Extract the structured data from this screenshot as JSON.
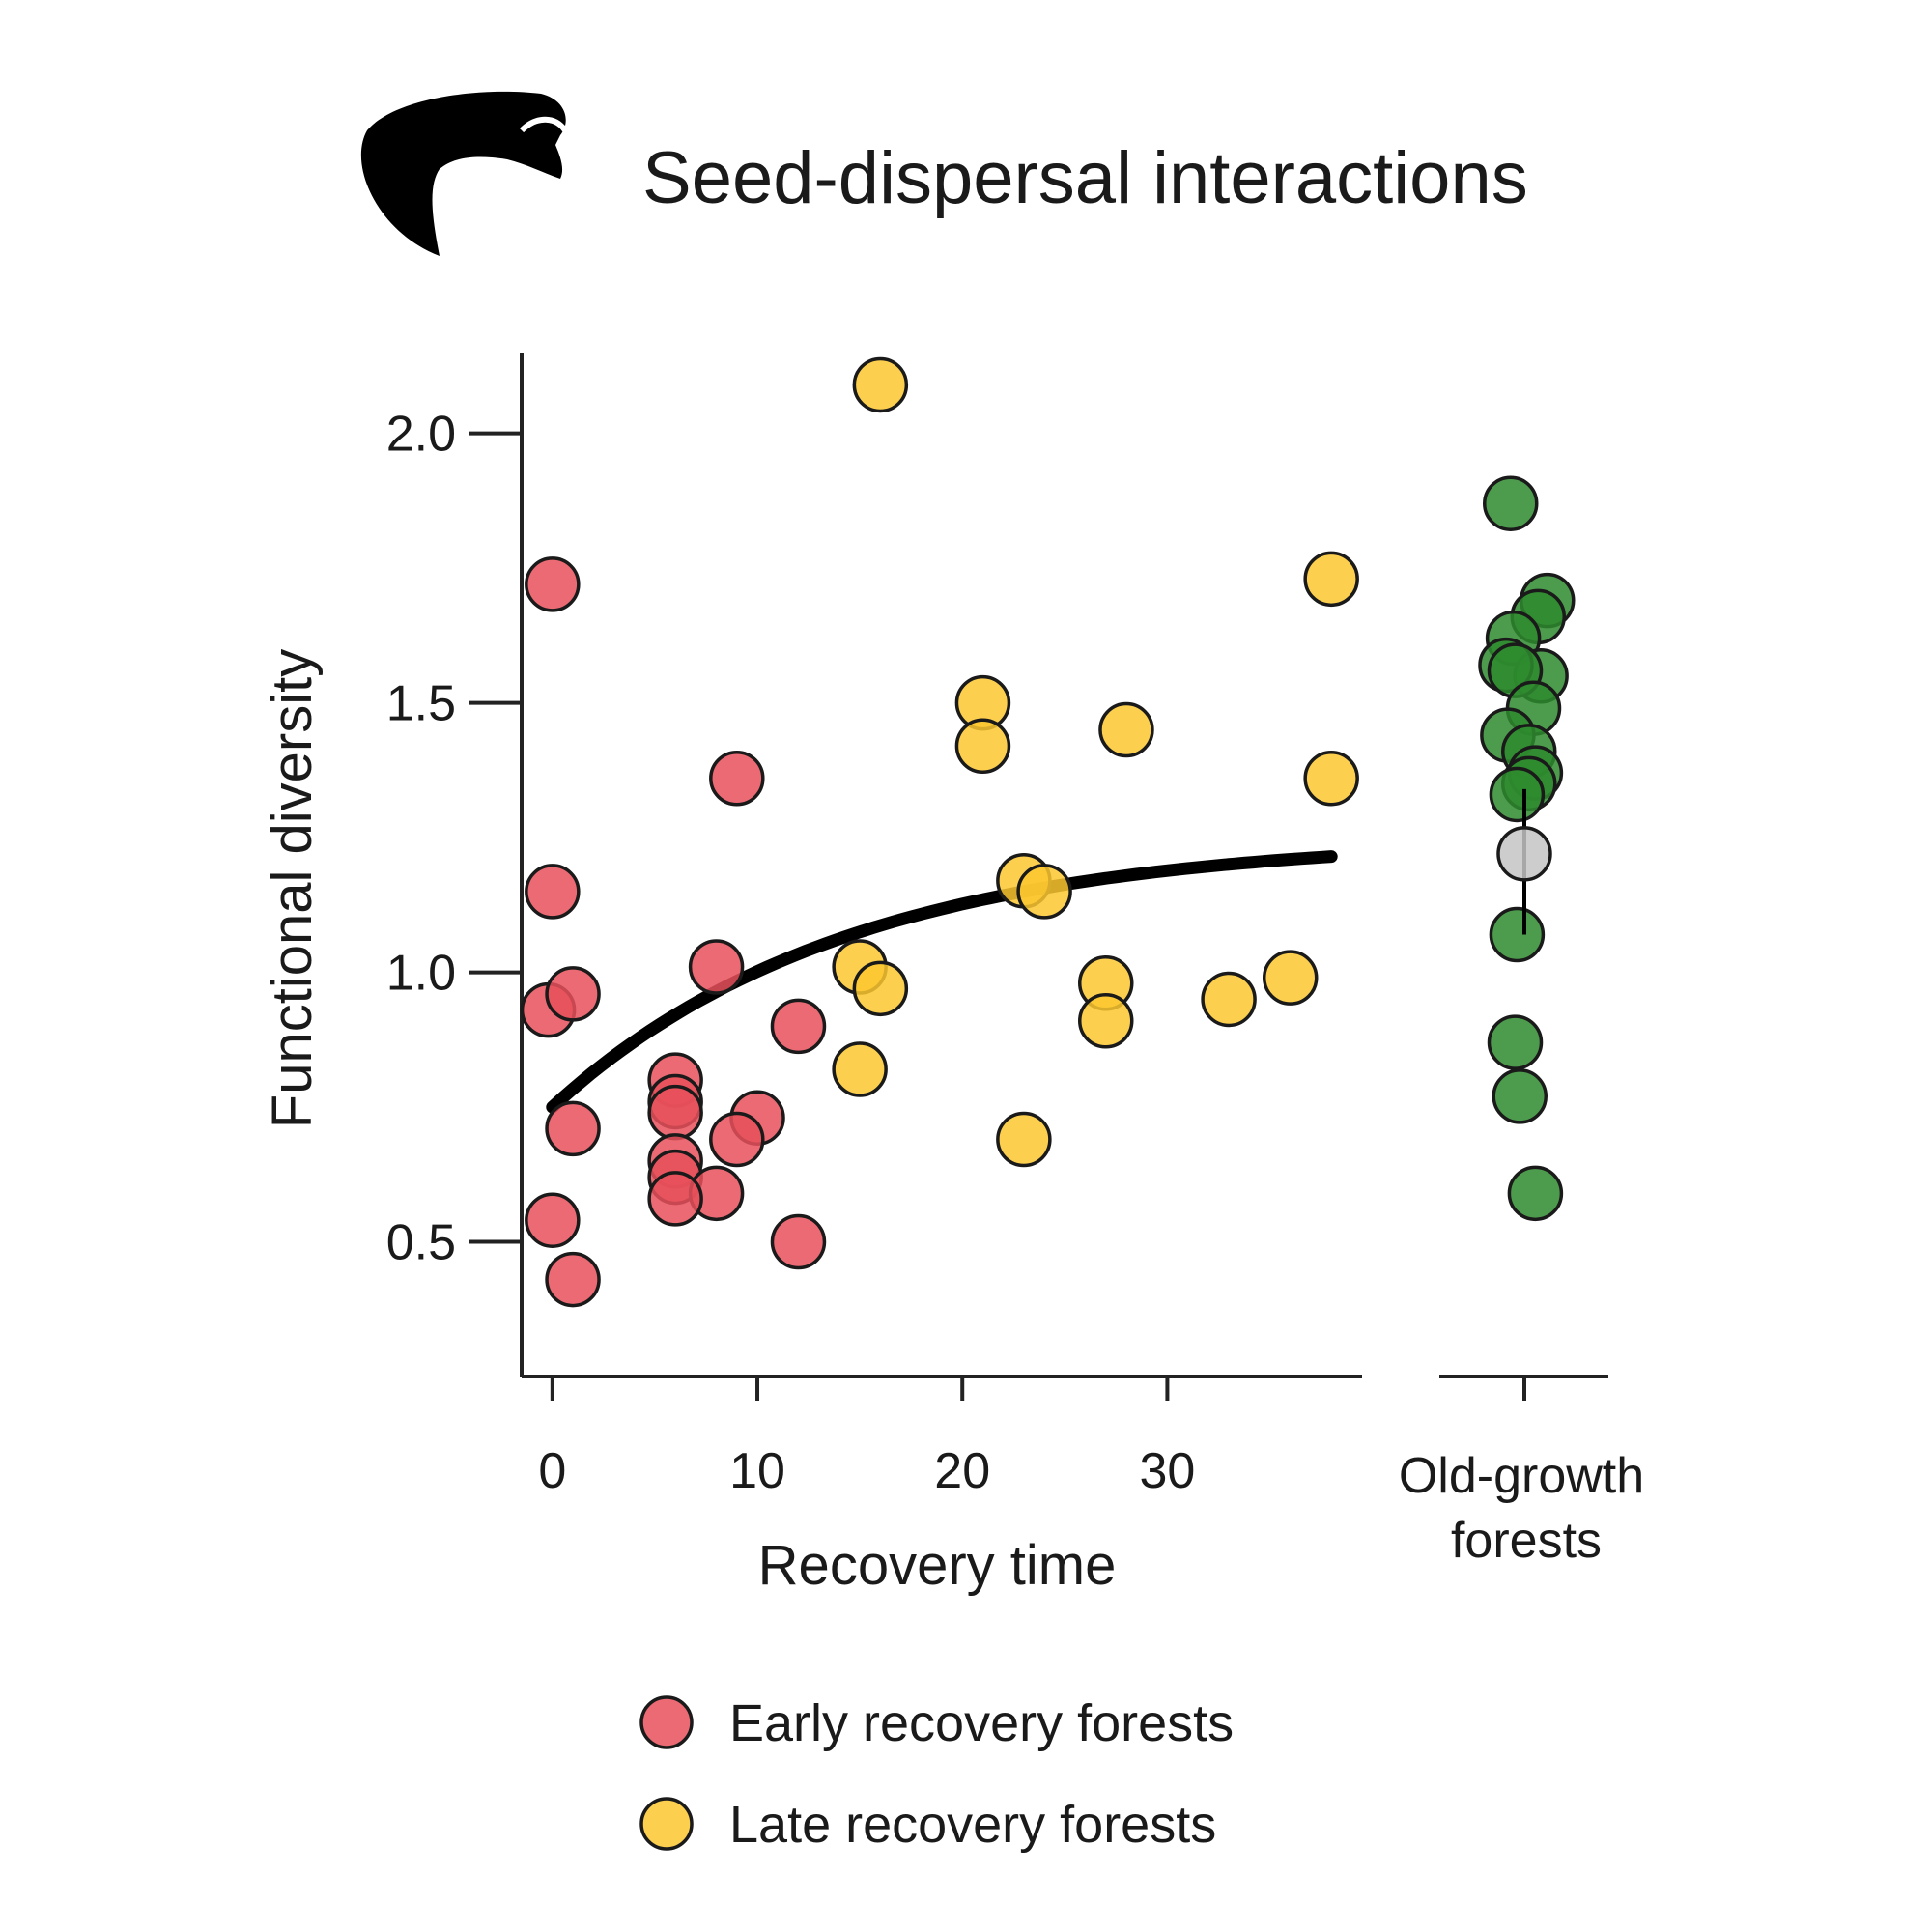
{
  "chart_data": {
    "type": "scatter",
    "title": "Seed-dispersal interactions",
    "icon": "bird-silhouette-icon",
    "xlabel": "Recovery time",
    "ylabel": "Functional diversity",
    "xlim": [
      -1.5,
      39.5
    ],
    "ylim": [
      0.25,
      2.15
    ],
    "x_ticks": [
      0,
      10,
      20,
      30
    ],
    "y_ticks": [
      0.5,
      1.0,
      1.5,
      2.0
    ],
    "x_tick_labels": [
      "0",
      "10",
      "20",
      "30"
    ],
    "y_tick_labels": [
      "0.5",
      "1.0",
      "1.5",
      "2.0"
    ],
    "category_label_line1": "Old-growth",
    "category_label_line2": "forests",
    "grid": false,
    "legend_position": "bottom",
    "series": [
      {
        "name": "Early recovery forests",
        "color": "#e8505b",
        "points": [
          [
            0,
            1.72
          ],
          [
            0,
            1.15
          ],
          [
            -0.2,
            0.93
          ],
          [
            1,
            0.96
          ],
          [
            1,
            0.71
          ],
          [
            0,
            0.54
          ],
          [
            1,
            0.43
          ],
          [
            9,
            1.36
          ],
          [
            8,
            1.01
          ],
          [
            12,
            0.9
          ],
          [
            6,
            0.8
          ],
          [
            6,
            0.76
          ],
          [
            6,
            0.74
          ],
          [
            10,
            0.73
          ],
          [
            9,
            0.69
          ],
          [
            6,
            0.65
          ],
          [
            6,
            0.62
          ],
          [
            8,
            0.59
          ],
          [
            6,
            0.58
          ],
          [
            12,
            0.5
          ]
        ]
      },
      {
        "name": "Late recovery forests",
        "color": "#fcc72f",
        "points": [
          [
            16,
            2.09
          ],
          [
            38,
            1.73
          ],
          [
            21,
            1.5
          ],
          [
            21,
            1.42
          ],
          [
            28,
            1.45
          ],
          [
            38,
            1.36
          ],
          [
            23,
            1.17
          ],
          [
            24,
            1.15
          ],
          [
            15,
            1.01
          ],
          [
            16,
            0.97
          ],
          [
            15,
            0.82
          ],
          [
            27,
            0.98
          ],
          [
            27,
            0.91
          ],
          [
            33,
            0.95
          ],
          [
            36,
            0.99
          ],
          [
            23,
            0.69
          ]
        ]
      },
      {
        "name": "Old-growth forests",
        "color": "#2e8b2e",
        "points": [
          [
            -0.15,
            1.87
          ],
          [
            0.25,
            1.69
          ],
          [
            0.15,
            1.66
          ],
          [
            -0.12,
            1.62
          ],
          [
            0.18,
            1.55
          ],
          [
            -0.2,
            1.57
          ],
          [
            -0.1,
            1.56
          ],
          [
            0.1,
            1.49
          ],
          [
            -0.18,
            1.44
          ],
          [
            0.05,
            1.41
          ],
          [
            0.12,
            1.37
          ],
          [
            0.05,
            1.35
          ],
          [
            -0.08,
            1.33
          ],
          [
            -0.08,
            1.07
          ],
          [
            -0.1,
            0.87
          ],
          [
            -0.05,
            0.77
          ],
          [
            0.12,
            0.59
          ]
        ]
      }
    ],
    "old_growth_mean": 1.22,
    "old_growth_mean_color": "#c4c4c4",
    "old_growth_error": [
      1.07,
      1.34
    ],
    "fit_curve": {
      "x": [
        0,
        38
      ],
      "a": 1.25,
      "b": 0.5,
      "k": 0.07
    }
  }
}
